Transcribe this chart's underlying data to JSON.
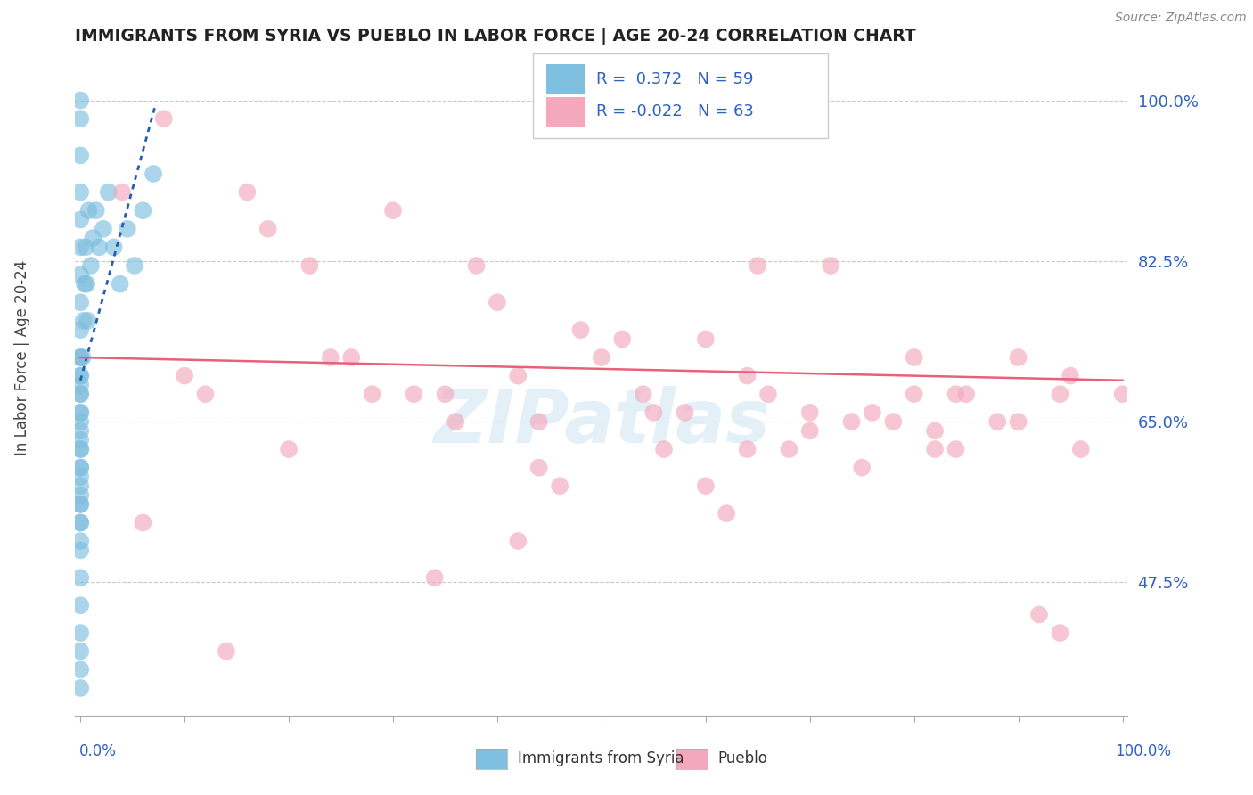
{
  "title": "IMMIGRANTS FROM SYRIA VS PUEBLO IN LABOR FORCE | AGE 20-24 CORRELATION CHART",
  "source": "Source: ZipAtlas.com",
  "ylabel": "In Labor Force | Age 20-24",
  "watermark": "ZIPatlas",
  "legend_R_blue": "0.372",
  "legend_N_blue": "59",
  "legend_R_pink": "-0.022",
  "legend_N_pink": "63",
  "blue_color": "#7fbfdf",
  "pink_color": "#f4a8be",
  "blue_line_color": "#2060b0",
  "pink_line_color": "#e8607a",
  "grid_color": "#c8c8c8",
  "bg_color": "#ffffff",
  "ylim": [
    0.33,
    1.04
  ],
  "xlim": [
    -0.005,
    1.005
  ],
  "ytick_vals": [
    0.475,
    0.65,
    0.825,
    1.0
  ],
  "ytick_labels": [
    "47.5%",
    "65.0%",
    "82.5%",
    "100.0%"
  ],
  "syria_x": [
    0.0,
    0.0,
    0.0,
    0.0,
    0.0,
    0.0,
    0.0,
    0.0,
    0.0,
    0.0,
    0.0,
    0.0,
    0.0,
    0.0,
    0.0,
    0.0,
    0.0,
    0.0,
    0.0,
    0.0,
    0.0,
    0.0,
    0.0,
    0.0,
    0.0,
    0.0,
    0.0,
    0.0,
    0.0,
    0.0,
    0.0,
    0.0,
    0.0,
    0.0,
    0.0,
    0.0,
    0.0,
    0.0,
    0.0,
    0.0,
    0.002,
    0.003,
    0.004,
    0.005,
    0.006,
    0.007,
    0.008,
    0.01,
    0.012,
    0.015,
    0.018,
    0.022,
    0.027,
    0.032,
    0.038,
    0.045,
    0.052,
    0.06,
    0.07
  ],
  "syria_y": [
    1.0,
    0.98,
    0.94,
    0.9,
    0.87,
    0.84,
    0.81,
    0.78,
    0.75,
    0.72,
    0.7,
    0.68,
    0.66,
    0.64,
    0.62,
    0.6,
    0.58,
    0.56,
    0.54,
    0.52,
    0.72,
    0.69,
    0.66,
    0.63,
    0.6,
    0.57,
    0.54,
    0.51,
    0.48,
    0.45,
    0.42,
    0.4,
    0.38,
    0.36,
    0.7,
    0.68,
    0.65,
    0.62,
    0.59,
    0.56,
    0.72,
    0.76,
    0.8,
    0.84,
    0.8,
    0.76,
    0.88,
    0.82,
    0.85,
    0.88,
    0.84,
    0.86,
    0.9,
    0.84,
    0.8,
    0.86,
    0.82,
    0.88,
    0.92
  ],
  "pueblo_x": [
    0.08,
    0.12,
    0.16,
    0.22,
    0.26,
    0.3,
    0.35,
    0.4,
    0.44,
    0.5,
    0.55,
    0.6,
    0.65,
    0.7,
    0.75,
    0.8,
    0.85,
    0.9,
    0.95,
    1.0,
    0.18,
    0.24,
    0.32,
    0.38,
    0.42,
    0.48,
    0.54,
    0.6,
    0.66,
    0.72,
    0.78,
    0.84,
    0.9,
    0.96,
    0.52,
    0.58,
    0.64,
    0.7,
    0.76,
    0.82,
    0.88,
    0.94,
    0.04,
    0.06,
    0.1,
    0.14,
    0.2,
    0.28,
    0.36,
    0.46,
    0.56,
    0.68,
    0.8,
    0.92,
    0.34,
    0.44,
    0.64,
    0.74,
    0.84,
    0.94,
    0.42,
    0.62,
    0.82
  ],
  "pueblo_y": [
    0.98,
    0.68,
    0.9,
    0.82,
    0.72,
    0.88,
    0.68,
    0.78,
    0.65,
    0.72,
    0.66,
    0.58,
    0.82,
    0.66,
    0.6,
    0.72,
    0.68,
    0.65,
    0.7,
    0.68,
    0.86,
    0.72,
    0.68,
    0.82,
    0.7,
    0.75,
    0.68,
    0.74,
    0.68,
    0.82,
    0.65,
    0.68,
    0.72,
    0.62,
    0.74,
    0.66,
    0.7,
    0.64,
    0.66,
    0.62,
    0.65,
    0.68,
    0.9,
    0.54,
    0.7,
    0.4,
    0.62,
    0.68,
    0.65,
    0.58,
    0.62,
    0.62,
    0.68,
    0.44,
    0.48,
    0.6,
    0.62,
    0.65,
    0.62,
    0.42,
    0.52,
    0.55,
    0.64
  ],
  "blue_trend_x": [
    0.0,
    0.072
  ],
  "blue_trend_y": [
    0.695,
    0.995
  ],
  "pink_trend_x": [
    0.0,
    1.0
  ],
  "pink_trend_y": [
    0.72,
    0.695
  ]
}
